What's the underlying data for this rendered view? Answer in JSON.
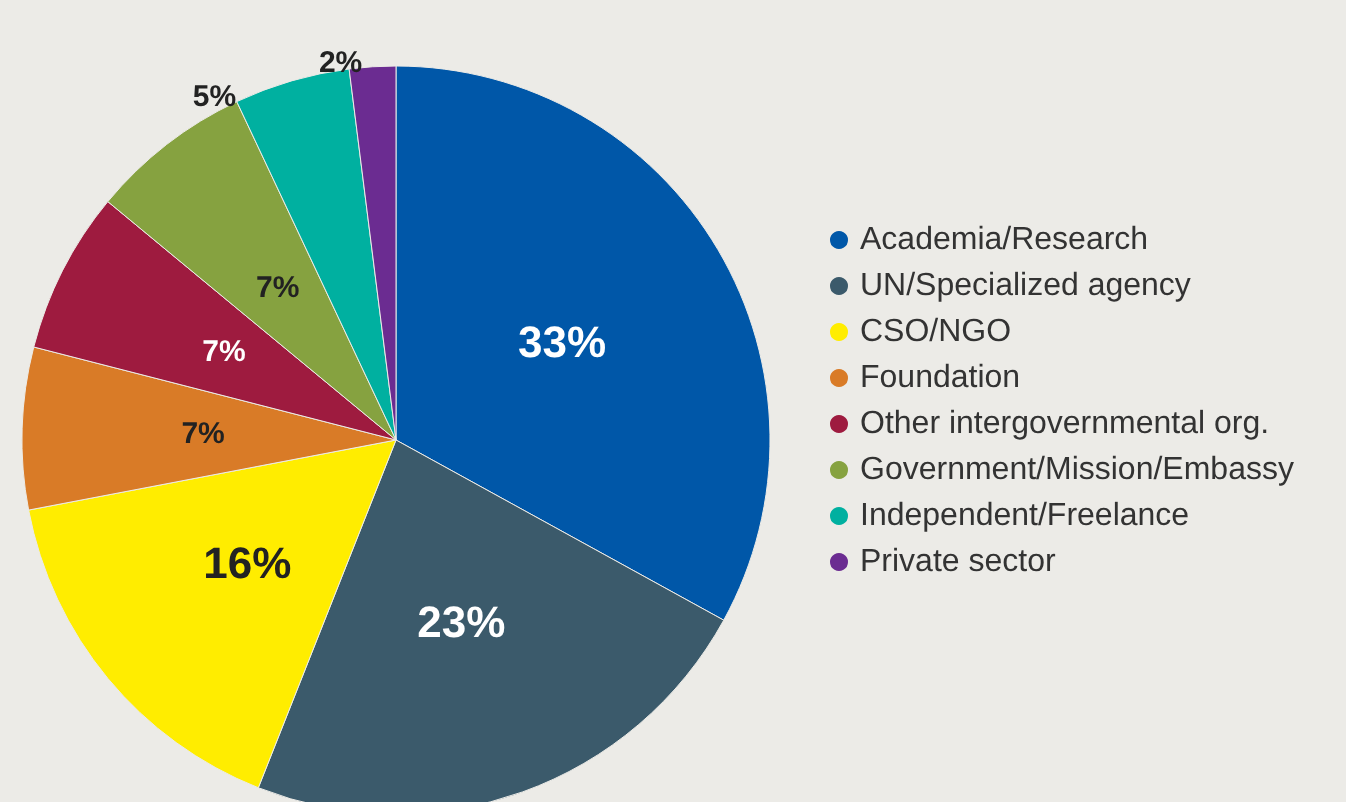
{
  "chart_data": {
    "type": "pie",
    "categories": [
      "Academia/Research",
      "UN/Specialized agency",
      "CSO/NGO",
      "Foundation",
      "Other intergovernmental org.",
      "Government/Mission/Embassy",
      "Independent/Freelance",
      "Private sector"
    ],
    "values": [
      33,
      23,
      16,
      7,
      7,
      7,
      5,
      2
    ],
    "value_labels": [
      "33%",
      "23%",
      "16%",
      "7%",
      "7%",
      "7%",
      "5%",
      "2%"
    ],
    "colors": [
      "#0057a8",
      "#3b5a6b",
      "#ffed00",
      "#d97b27",
      "#9e1b3f",
      "#86a240",
      "#00b0a0",
      "#6b2c91"
    ],
    "legend": "right"
  }
}
